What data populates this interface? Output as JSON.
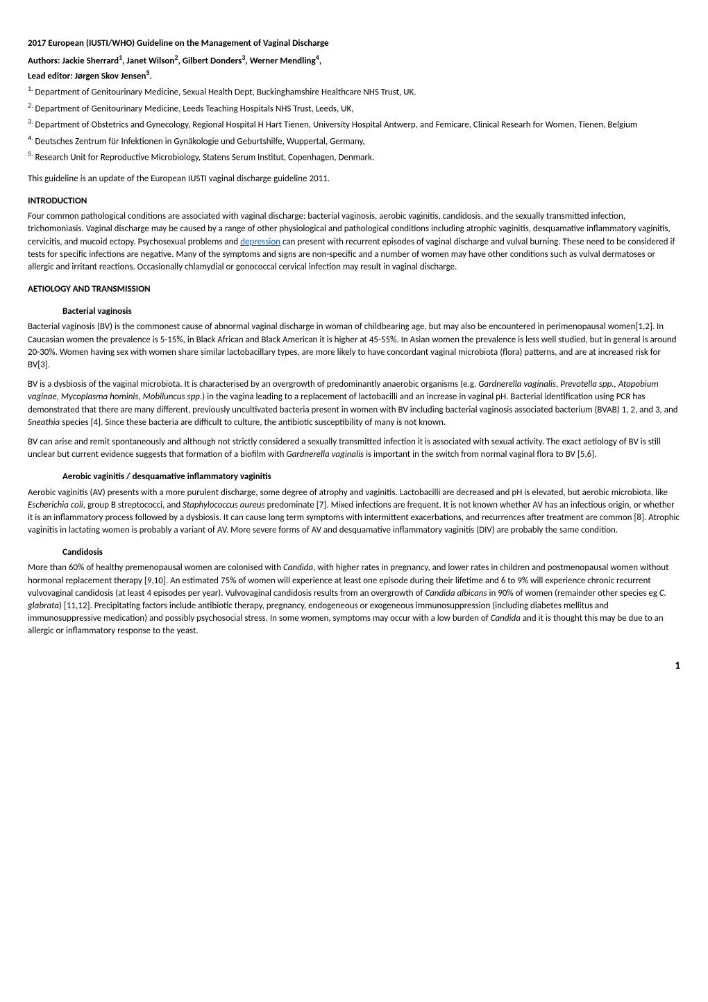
{
  "title": "2017 European (IUSTI/WHO) Guideline on the Management of Vaginal Discharge",
  "authors_label": "Authors: Jackie Sherrard",
  "authors_sup1": "1",
  "authors_sep1": ", Janet Wilson",
  "authors_sup2": "2",
  "authors_sep2": ", Gilbert Donders",
  "authors_sup3": "3",
  "authors_sep3": ", Werner Mendling",
  "authors_sup4": "4",
  "authors_sep4": ",",
  "lead_label": "Lead editor: Jørgen Skov Jensen",
  "lead_sup": "5",
  "lead_period": ".",
  "affiliations": {
    "a1_sup": "1.",
    "a1_text": " Department of Genitourinary Medicine, Sexual Health Dept, Buckinghamshire Healthcare NHS Trust, UK.",
    "a2_sup": "2.",
    "a2_text": " Department of Genitourinary Medicine, Leeds Teaching Hospitals NHS Trust, Leeds, UK,",
    "a3_sup": "3.",
    "a3_text": " Department of Obstetrics and Gynecology, Regional Hospital H Hart Tienen, University Hospital Antwerp, and Femicare, Clinical Researh for Women, Tienen, Belgium",
    "a4_sup": "4.",
    "a4_text": " Deutsches Zentrum für Infektionen in Gynäkologie und Geburtshilfe, Wuppertal, Germany,",
    "a5_sup": "5.",
    "a5_text": " Research Unit for Reproductive Microbiology, Statens Serum Institut, Copenhagen, Denmark."
  },
  "update_note": "This guideline is an update of the European IUSTI vaginal discharge guideline 2011.",
  "introduction_heading": "INTRODUCTION",
  "intro_p1_a": "Four common pathological conditions are associated with vaginal discharge: bacterial vaginosis, aerobic vaginitis, candidosis, and the sexually transmitted infection, trichomoniasis.  Vaginal discharge may be caused by a range of other physiological and pathological conditions including atrophic vaginitis, desquamative inflammatory vaginitis, cervicitis, and mucoid ectopy. Psychosexual problems and ",
  "intro_link": "depression",
  "intro_p1_b": " can present with recurrent episodes of vaginal discharge and vulval burning. These need to be considered if tests for specific infections are negative. Many of the symptoms and signs are non-specific and a number of women may have other conditions such as vulval dermatoses or allergic and irritant reactions.  Occasionally chlamydial or gonococcal cervical infection may result in vaginal discharge.",
  "aetiology_heading": "AETIOLOGY AND TRANSMISSION",
  "bv_heading": "Bacterial vaginosis",
  "bv_p1": "Bacterial vaginosis (BV) is the commonest cause of abnormal vaginal discharge in woman of childbearing age, but may also be encountered in perimenopausal women[1,2]. In Caucasian women the prevalence is 5-15%, in Black African and Black American it is higher at 45-55%.  In Asian women the prevalence is less well studied, but in general is around 20-30%. Women having sex with women share similar lactobacillary types, are more likely to have concordant vaginal microbiota (flora) patterns, and are at increased risk for BV[3].",
  "bv_p2_a": "BV is a dysbiosis of the vaginal microbiota. It is characterised by an overgrowth of predominantly anaerobic organisms (e.g. ",
  "bv_p2_i1": "Gardnerella vaginalis",
  "bv_p2_b": ", ",
  "bv_p2_i2": "Prevotella spp., Atopobium vaginae, Mycoplasma hominis, Mobiluncus spp",
  "bv_p2_c": ".) in the vagina leading to a replacement of lactobacilli and an increase in vaginal pH. Bacterial identification using PCR has demonstrated that there are many different, previously uncultivated bacteria present in women with BV including bacterial vaginosis associated bacterium (BVAB) 1, 2, and 3, and ",
  "bv_p2_i3": "Sneathia",
  "bv_p2_d": " species [4]. Since these bacteria are difficult to culture, the antibiotic susceptibility of many is not known.",
  "bv_p3_a": "BV can arise and remit spontaneously and although not strictly considered a sexually transmitted infection it is associated with sexual activity. The exact aetiology of BV is still unclear but current evidence suggests that formation of a biofilm with ",
  "bv_p3_i1": "Gardnerella vaginalis",
  "bv_p3_b": " is important in the switch from normal vaginal flora to BV [5,6].",
  "av_heading": "Aerobic vaginitis / desquamative inflammatory vaginitis",
  "av_p1_a": "Aerobic vaginitis (AV) presents with a more purulent discharge, some degree of atrophy and vaginitis. Lactobacilli are decreased and pH is elevated, but aerobic microbiota, like ",
  "av_p1_i1": "Escherichia coli",
  "av_p1_b": ", group B streptococci, and ",
  "av_p1_i2": "Staphylococcus aureus",
  "av_p1_c": " predominate [7]. Mixed infections are frequent.  It is not known whether AV has an infectious origin, or whether it is an inflammatory process followed by a dysbiosis. It can cause long term symptoms with intermittent exacerbations, and recurrences after treatment are common [8]. Atrophic vaginitis in lactating women is probably a variant of AV. More severe forms of AV and desquamative inflammatory vaginitis (DIV) are probably the same condition.",
  "cand_heading": "Candidosis",
  "cand_p1_a": "More than 60% of healthy premenopausal women are colonised with ",
  "cand_p1_i1": "Candida",
  "cand_p1_b": ", with higher rates in pregnancy, and lower rates in children and postmenopausal women without hormonal replacement therapy [9,10].  An estimated 75% of women will experience at least one episode during their lifetime and 6 to 9% will experience chronic recurrent vulvovaginal candidosis (at least 4 episodes per year). Vulvovaginal candidosis results from an overgrowth of ",
  "cand_p1_i2": "Candida albicans",
  "cand_p1_c": " in 90% of women (remainder other species eg ",
  "cand_p1_i3": "C. glabrata",
  "cand_p1_d": ") [11,12]. Precipitating factors include antibiotic therapy, pregnancy, endogeneous or exogeneous immunosuppression (including diabetes mellitus and immunosuppressive medication) and possibly psychosocial stress. In some women, symptoms may occur with a low burden of ",
  "cand_p1_i4": "Candida",
  "cand_p1_e": " and it is thought this may be due to an allergic or inflammatory response to the yeast.",
  "page_number": "1"
}
